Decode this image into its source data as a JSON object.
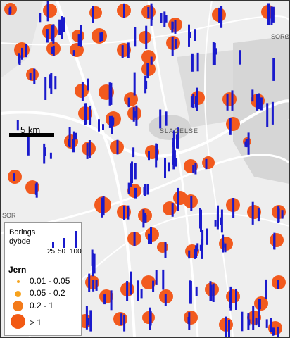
{
  "scale": {
    "label": "5 km"
  },
  "map_labels": {
    "town": "SLAGELSE",
    "top_right": "SORØ",
    "left_edge": "SOR"
  },
  "legend": {
    "borings_title": "Borings",
    "borings_subtitle": "dybde",
    "depth_ticks": [
      "25",
      "50",
      "100"
    ],
    "jern_title": "Jern",
    "classes": [
      {
        "label": "0.01 - 0.05",
        "color": "#f5a623"
      },
      {
        "label": "0.05 - 0.2",
        "color": "#f7a21c"
      },
      {
        "label": "0.2 - 1",
        "color": "#f37a1a"
      },
      {
        "label": "> 1",
        "color": "#f25a14"
      }
    ]
  },
  "colors": {
    "large_dot": "#f25a1e",
    "bar": "#1a1acc",
    "background": "#f0f0f0",
    "road": "#ffffff"
  }
}
